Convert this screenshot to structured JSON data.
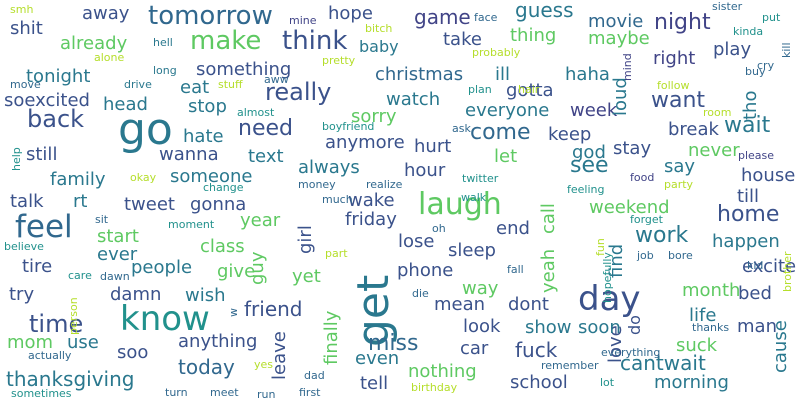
{
  "words": [
    {
      "text": "get",
      "color": "#2a788e",
      "big": "true"
    },
    {
      "text": "go",
      "color": "#2a788e"
    },
    {
      "text": "know",
      "color": "#21918c"
    },
    {
      "text": "day",
      "color": "#3b528b"
    },
    {
      "text": "feel",
      "color": "#31688e"
    },
    {
      "text": "laugh",
      "color": "#5ec962"
    },
    {
      "text": "tomorrow",
      "color": "#31688e"
    },
    {
      "text": "think",
      "color": "#3b528b"
    },
    {
      "text": "make",
      "color": "#5ec962"
    },
    {
      "text": "really",
      "color": "#3b528b"
    },
    {
      "text": "back",
      "color": "#3b528b"
    },
    {
      "text": "time",
      "color": "#3b528b"
    },
    {
      "text": "want",
      "color": "#3b528b"
    },
    {
      "text": "work",
      "color": "#2a788e"
    },
    {
      "text": "miss",
      "color": "#31688e"
    },
    {
      "text": "see",
      "color": "#2a788e"
    },
    {
      "text": "come",
      "color": "#31688e"
    },
    {
      "text": "night",
      "color": "#414487"
    },
    {
      "text": "home",
      "color": "#3b528b"
    },
    {
      "text": "wait",
      "color": "#2a788e"
    },
    {
      "text": "need",
      "color": "#3b528b"
    },
    {
      "text": "friend",
      "color": "#3b528b"
    },
    {
      "text": "today",
      "color": "#31688e"
    },
    {
      "text": "cantwait",
      "color": "#2a788e"
    },
    {
      "text": "thanksgiving",
      "color": "#2a788e"
    },
    {
      "text": "fuck",
      "color": "#3b528b"
    },
    {
      "text": "game",
      "color": "#414487"
    },
    {
      "text": "guess",
      "color": "#2a788e"
    },
    {
      "text": "hope",
      "color": "#3b528b"
    },
    {
      "text": "away",
      "color": "#3b528b"
    },
    {
      "text": "take",
      "color": "#3b528b"
    },
    {
      "text": "thing",
      "color": "#5ec962"
    },
    {
      "text": "right",
      "color": "#414487"
    },
    {
      "text": "play",
      "color": "#3b528b"
    },
    {
      "text": "movie",
      "color": "#31688e"
    },
    {
      "text": "maybe",
      "color": "#5ec962"
    },
    {
      "text": "christmas",
      "color": "#31688e"
    },
    {
      "text": "ill",
      "color": "#2a788e"
    },
    {
      "text": "haha",
      "color": "#2a788e"
    },
    {
      "text": "gotta",
      "color": "#3b528b"
    },
    {
      "text": "watch",
      "color": "#2a788e"
    },
    {
      "text": "everyone",
      "color": "#2a788e"
    },
    {
      "text": "sorry",
      "color": "#5ec962"
    },
    {
      "text": "week",
      "color": "#414487"
    },
    {
      "text": "loud",
      "color": "#2a788e"
    },
    {
      "text": "tho",
      "color": "#2a788e"
    },
    {
      "text": "keep",
      "color": "#3b528b"
    },
    {
      "text": "break",
      "color": "#3b528b"
    },
    {
      "text": "say",
      "color": "#2a788e"
    },
    {
      "text": "never",
      "color": "#5ec962"
    },
    {
      "text": "stay",
      "color": "#3b528b"
    },
    {
      "text": "god",
      "color": "#2a788e"
    },
    {
      "text": "house",
      "color": "#3b528b"
    },
    {
      "text": "till",
      "color": "#3b528b"
    },
    {
      "text": "weekend",
      "color": "#5ec962"
    },
    {
      "text": "happen",
      "color": "#2a788e"
    },
    {
      "text": "excite",
      "color": "#3b528b"
    },
    {
      "text": "bed",
      "color": "#3b528b"
    },
    {
      "text": "month",
      "color": "#5ec962"
    },
    {
      "text": "life",
      "color": "#2a788e"
    },
    {
      "text": "man",
      "color": "#3b528b"
    },
    {
      "text": "love",
      "color": "#3b528b"
    },
    {
      "text": "cause",
      "color": "#2a788e"
    },
    {
      "text": "soon",
      "color": "#2a788e"
    },
    {
      "text": "show",
      "color": "#2a788e"
    },
    {
      "text": "suck",
      "color": "#5ec962"
    },
    {
      "text": "morning",
      "color": "#2a788e"
    },
    {
      "text": "school",
      "color": "#3b528b"
    },
    {
      "text": "shit",
      "color": "#3b528b"
    },
    {
      "text": "already",
      "color": "#5ec962"
    },
    {
      "text": "tonight",
      "color": "#2a788e"
    },
    {
      "text": "soexcited",
      "color": "#3b528b"
    },
    {
      "text": "something",
      "color": "#3b528b"
    },
    {
      "text": "eat",
      "color": "#2a788e"
    },
    {
      "text": "head",
      "color": "#2a788e"
    },
    {
      "text": "stop",
      "color": "#2a788e"
    },
    {
      "text": "hate",
      "color": "#2a788e"
    },
    {
      "text": "wanna",
      "color": "#3b528b"
    },
    {
      "text": "still",
      "color": "#3b528b"
    },
    {
      "text": "family",
      "color": "#2a788e"
    },
    {
      "text": "someone",
      "color": "#2a788e"
    },
    {
      "text": "talk",
      "color": "#3b528b"
    },
    {
      "text": "rt",
      "color": "#2a788e"
    },
    {
      "text": "tweet",
      "color": "#3b528b"
    },
    {
      "text": "gonna",
      "color": "#3b528b"
    },
    {
      "text": "start",
      "color": "#5ec962"
    },
    {
      "text": "ever",
      "color": "#2a788e"
    },
    {
      "text": "tire",
      "color": "#3b528b"
    },
    {
      "text": "people",
      "color": "#2a788e"
    },
    {
      "text": "give",
      "color": "#5ec962"
    },
    {
      "text": "try",
      "color": "#3b528b"
    },
    {
      "text": "damn",
      "color": "#3b528b"
    },
    {
      "text": "wish",
      "color": "#2a788e"
    },
    {
      "text": "mom",
      "color": "#5ec962"
    },
    {
      "text": "use",
      "color": "#2a788e"
    },
    {
      "text": "soo",
      "color": "#3b528b"
    },
    {
      "text": "anything",
      "color": "#3b528b"
    },
    {
      "text": "leave",
      "color": "#3b528b"
    },
    {
      "text": "finally",
      "color": "#5ec962"
    },
    {
      "text": "even",
      "color": "#2a788e"
    },
    {
      "text": "tell",
      "color": "#3b528b"
    },
    {
      "text": "nothing",
      "color": "#5ec962"
    },
    {
      "text": "car",
      "color": "#3b528b"
    },
    {
      "text": "look",
      "color": "#3b528b"
    },
    {
      "text": "mean",
      "color": "#3b528b"
    },
    {
      "text": "way",
      "color": "#5ec962"
    },
    {
      "text": "dont",
      "color": "#3b528b"
    },
    {
      "text": "phone",
      "color": "#3b528b"
    },
    {
      "text": "sleep",
      "color": "#3b528b"
    },
    {
      "text": "lose",
      "color": "#3b528b"
    },
    {
      "text": "yeah",
      "color": "#5ec962"
    },
    {
      "text": "call",
      "color": "#5ec962"
    },
    {
      "text": "find",
      "color": "#2a788e"
    },
    {
      "text": "end",
      "color": "#3b528b"
    },
    {
      "text": "friday",
      "color": "#3b528b"
    },
    {
      "text": "wake",
      "color": "#3b528b"
    },
    {
      "text": "hour",
      "color": "#3b528b"
    },
    {
      "text": "always",
      "color": "#2a788e"
    },
    {
      "text": "anymore",
      "color": "#3b528b"
    },
    {
      "text": "let",
      "color": "#5ec962"
    },
    {
      "text": "hurt",
      "color": "#3b528b"
    },
    {
      "text": "text",
      "color": "#2a788e"
    },
    {
      "text": "year",
      "color": "#5ec962"
    },
    {
      "text": "class",
      "color": "#5ec962"
    },
    {
      "text": "girl",
      "color": "#3b528b"
    },
    {
      "text": "guy",
      "color": "#5ec962"
    },
    {
      "text": "yet",
      "color": "#5ec962"
    },
    {
      "text": "baby",
      "color": "#2a788e"
    },
    {
      "text": "do",
      "color": "#3b528b"
    },
    {
      "text": "smh",
      "color": "#b5de2b"
    },
    {
      "text": "move",
      "color": "#31688e"
    },
    {
      "text": "hell",
      "color": "#2a788e"
    },
    {
      "text": "alone",
      "color": "#b5de2b"
    },
    {
      "text": "long",
      "color": "#2a788e"
    },
    {
      "text": "drive",
      "color": "#2a788e"
    },
    {
      "text": "stuff",
      "color": "#b5de2b"
    },
    {
      "text": "aww",
      "color": "#31688e"
    },
    {
      "text": "pretty",
      "color": "#b5de2b"
    },
    {
      "text": "bitch",
      "color": "#b5de2b"
    },
    {
      "text": "mine",
      "color": "#414487"
    },
    {
      "text": "plan",
      "color": "#21918c"
    },
    {
      "text": "hair",
      "color": "#b5de2b"
    },
    {
      "text": "probably",
      "color": "#b5de2b"
    },
    {
      "text": "face",
      "color": "#31688e"
    },
    {
      "text": "sister",
      "color": "#31688e"
    },
    {
      "text": "kinda",
      "color": "#21918c"
    },
    {
      "text": "put",
      "color": "#21918c"
    },
    {
      "text": "kill",
      "color": "#31688e"
    },
    {
      "text": "mind",
      "color": "#414487"
    },
    {
      "text": "cry",
      "color": "#31688e"
    },
    {
      "text": "follow",
      "color": "#b5de2b"
    },
    {
      "text": "buy",
      "color": "#31688e"
    },
    {
      "text": "room",
      "color": "#b5de2b"
    },
    {
      "text": "please",
      "color": "#414487"
    },
    {
      "text": "almost",
      "color": "#21918c"
    },
    {
      "text": "boyfriend",
      "color": "#21918c"
    },
    {
      "text": "ask",
      "color": "#31688e"
    },
    {
      "text": "help",
      "color": "#21918c"
    },
    {
      "text": "okay",
      "color": "#b5de2b"
    },
    {
      "text": "change",
      "color": "#21918c"
    },
    {
      "text": "money",
      "color": "#31688e"
    },
    {
      "text": "realize",
      "color": "#31688e"
    },
    {
      "text": "twitter",
      "color": "#21918c"
    },
    {
      "text": "feeling",
      "color": "#21918c"
    },
    {
      "text": "food",
      "color": "#414487"
    },
    {
      "text": "party",
      "color": "#b5de2b"
    },
    {
      "text": "much",
      "color": "#31688e"
    },
    {
      "text": "walk",
      "color": "#21918c"
    },
    {
      "text": "sit",
      "color": "#31688e"
    },
    {
      "text": "moment",
      "color": "#21918c"
    },
    {
      "text": "forget",
      "color": "#21918c"
    },
    {
      "text": "oh",
      "color": "#31688e"
    },
    {
      "text": "fun",
      "color": "#b5de2b"
    },
    {
      "text": "job",
      "color": "#31688e"
    },
    {
      "text": "bore",
      "color": "#31688e"
    },
    {
      "text": "kid",
      "color": "#31688e"
    },
    {
      "text": "brother",
      "color": "#b5de2b"
    },
    {
      "text": "believe",
      "color": "#21918c"
    },
    {
      "text": "care",
      "color": "#21918c"
    },
    {
      "text": "dawn",
      "color": "#31688e"
    },
    {
      "text": "part",
      "color": "#b5de2b"
    },
    {
      "text": "hopefully",
      "color": "#21918c"
    },
    {
      "text": "person",
      "color": "#b5de2b"
    },
    {
      "text": "die",
      "color": "#31688e"
    },
    {
      "text": "fall",
      "color": "#31688e"
    },
    {
      "text": "w",
      "color": "#31688e"
    },
    {
      "text": "thanks",
      "color": "#31688e"
    },
    {
      "text": "actually",
      "color": "#31688e"
    },
    {
      "text": "yes",
      "color": "#b5de2b"
    },
    {
      "text": "dad",
      "color": "#31688e"
    },
    {
      "text": "remember",
      "color": "#31688e"
    },
    {
      "text": "everything",
      "color": "#31688e"
    },
    {
      "text": "sometimes",
      "color": "#21918c"
    },
    {
      "text": "turn",
      "color": "#31688e"
    },
    {
      "text": "meet",
      "color": "#31688e"
    },
    {
      "text": "run",
      "color": "#31688e"
    },
    {
      "text": "first",
      "color": "#31688e"
    },
    {
      "text": "birthday",
      "color": "#b5de2b"
    },
    {
      "text": "lot",
      "color": "#21918c"
    }
  ]
}
